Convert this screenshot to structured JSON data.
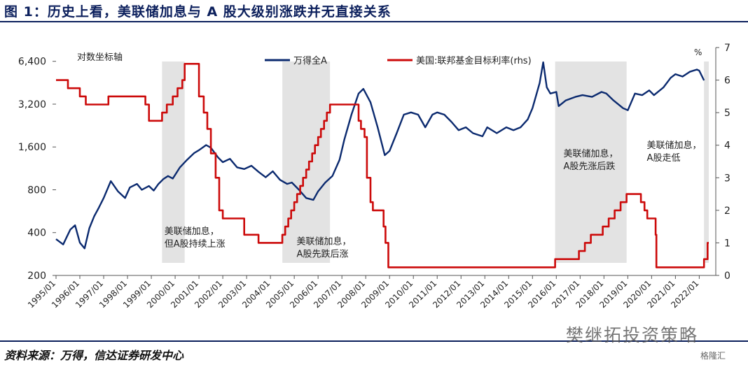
{
  "header": {
    "title": "图 1：历史上看，美联储加息与 A 股大级别涨跌并无直接关系"
  },
  "footer": {
    "source": "资料来源：万得，信达证券研发中心"
  },
  "watermark": {
    "text": "樊继拓投资策略",
    "badge": "格隆汇"
  },
  "colors": {
    "wind_a": "#0b2a6f",
    "fed_rate": "#cc0a0a",
    "shade": "#d9d9d9",
    "title": "#0b1f5c"
  },
  "chart_data": {
    "type": "line",
    "left_axis_label": "对数坐标轴",
    "right_axis_unit": "%",
    "y_left_ticks": [
      "6,400",
      "3,200",
      "1,600",
      "800",
      "400",
      "200"
    ],
    "y_left_values": [
      6400,
      3200,
      1600,
      800,
      400,
      200
    ],
    "y_left_scale": "log",
    "y_right_ticks": [
      "7",
      "6",
      "5",
      "4",
      "3",
      "2",
      "1",
      "0"
    ],
    "y_right_values": [
      7,
      6,
      5,
      4,
      3,
      2,
      1,
      0
    ],
    "x_ticks": [
      "1995/01",
      "1996/01",
      "1997/01",
      "1998/01",
      "1999/01",
      "2000/01",
      "2001/01",
      "2002/01",
      "2003/01",
      "2004/01",
      "2005/01",
      "2006/01",
      "2007/01",
      "2008/01",
      "2009/01",
      "2010/01",
      "2011/01",
      "2012/01",
      "2013/01",
      "2014/01",
      "2015/01",
      "2016/01",
      "2017/01",
      "2018/01",
      "2019/01",
      "2020/01",
      "2021/01",
      "2022/01"
    ],
    "legend": [
      {
        "name": "万得全A",
        "color": "#0b2a6f"
      },
      {
        "name": "美国:联邦基金目标利率(rhs)",
        "color": "#cc0a0a"
      }
    ],
    "series": [
      {
        "name": "万得全A",
        "axis": "left",
        "points": [
          [
            1995.0,
            360
          ],
          [
            1995.3,
            330
          ],
          [
            1995.6,
            420
          ],
          [
            1995.8,
            450
          ],
          [
            1996.0,
            340
          ],
          [
            1996.2,
            310
          ],
          [
            1996.4,
            430
          ],
          [
            1996.6,
            520
          ],
          [
            1996.8,
            600
          ],
          [
            1997.0,
            700
          ],
          [
            1997.3,
            920
          ],
          [
            1997.6,
            780
          ],
          [
            1997.9,
            700
          ],
          [
            1998.1,
            830
          ],
          [
            1998.4,
            880
          ],
          [
            1998.6,
            800
          ],
          [
            1998.9,
            850
          ],
          [
            1999.1,
            790
          ],
          [
            1999.3,
            880
          ],
          [
            1999.5,
            950
          ],
          [
            1999.7,
            1000
          ],
          [
            1999.9,
            960
          ],
          [
            2000.2,
            1150
          ],
          [
            2000.5,
            1300
          ],
          [
            2000.8,
            1450
          ],
          [
            2001.0,
            1520
          ],
          [
            2001.3,
            1650
          ],
          [
            2001.5,
            1580
          ],
          [
            2001.8,
            1350
          ],
          [
            2002.0,
            1250
          ],
          [
            2002.3,
            1320
          ],
          [
            2002.6,
            1150
          ],
          [
            2002.9,
            1120
          ],
          [
            2003.2,
            1180
          ],
          [
            2003.5,
            1070
          ],
          [
            2003.8,
            980
          ],
          [
            2004.1,
            1080
          ],
          [
            2004.4,
            940
          ],
          [
            2004.7,
            880
          ],
          [
            2004.9,
            900
          ],
          [
            2005.2,
            800
          ],
          [
            2005.5,
            700
          ],
          [
            2005.8,
            680
          ],
          [
            2006.0,
            780
          ],
          [
            2006.3,
            900
          ],
          [
            2006.6,
            1000
          ],
          [
            2006.9,
            1300
          ],
          [
            2007.1,
            1800
          ],
          [
            2007.4,
            2700
          ],
          [
            2007.7,
            3800
          ],
          [
            2007.9,
            4100
          ],
          [
            2008.2,
            3300
          ],
          [
            2008.5,
            2200
          ],
          [
            2008.8,
            1400
          ],
          [
            2009.0,
            1500
          ],
          [
            2009.3,
            2000
          ],
          [
            2009.6,
            2700
          ],
          [
            2009.9,
            2800
          ],
          [
            2010.2,
            2700
          ],
          [
            2010.5,
            2200
          ],
          [
            2010.8,
            2700
          ],
          [
            2011.0,
            2800
          ],
          [
            2011.3,
            2700
          ],
          [
            2011.6,
            2400
          ],
          [
            2011.9,
            2100
          ],
          [
            2012.2,
            2200
          ],
          [
            2012.5,
            2000
          ],
          [
            2012.9,
            1900
          ],
          [
            2013.1,
            2200
          ],
          [
            2013.5,
            2000
          ],
          [
            2013.9,
            2200
          ],
          [
            2014.2,
            2100
          ],
          [
            2014.5,
            2200
          ],
          [
            2014.8,
            2500
          ],
          [
            2015.0,
            3000
          ],
          [
            2015.3,
            4500
          ],
          [
            2015.45,
            6300
          ],
          [
            2015.6,
            4200
          ],
          [
            2015.75,
            3800
          ],
          [
            2016.0,
            3900
          ],
          [
            2016.1,
            3100
          ],
          [
            2016.4,
            3400
          ],
          [
            2016.8,
            3600
          ],
          [
            2017.1,
            3700
          ],
          [
            2017.5,
            3600
          ],
          [
            2017.9,
            3900
          ],
          [
            2018.1,
            3800
          ],
          [
            2018.4,
            3400
          ],
          [
            2018.8,
            3000
          ],
          [
            2019.0,
            2900
          ],
          [
            2019.3,
            3800
          ],
          [
            2019.6,
            3700
          ],
          [
            2019.9,
            4000
          ],
          [
            2020.1,
            3700
          ],
          [
            2020.5,
            4200
          ],
          [
            2020.8,
            4900
          ],
          [
            2021.0,
            5200
          ],
          [
            2021.3,
            5000
          ],
          [
            2021.6,
            5400
          ],
          [
            2021.9,
            5600
          ],
          [
            2022.0,
            5500
          ],
          [
            2022.2,
            4700
          ]
        ]
      },
      {
        "name": "美国:联邦基金目标利率(rhs)",
        "axis": "right",
        "points": [
          [
            1995.0,
            6.0
          ],
          [
            1995.5,
            6.0
          ],
          [
            1995.5,
            5.75
          ],
          [
            1996.0,
            5.75
          ],
          [
            1996.0,
            5.5
          ],
          [
            1996.25,
            5.5
          ],
          [
            1996.25,
            5.25
          ],
          [
            1997.2,
            5.25
          ],
          [
            1997.2,
            5.5
          ],
          [
            1998.75,
            5.5
          ],
          [
            1998.75,
            5.25
          ],
          [
            1998.9,
            5.25
          ],
          [
            1998.9,
            4.75
          ],
          [
            1999.45,
            4.75
          ],
          [
            1999.45,
            5.0
          ],
          [
            1999.65,
            5.0
          ],
          [
            1999.65,
            5.25
          ],
          [
            1999.9,
            5.25
          ],
          [
            1999.9,
            5.5
          ],
          [
            2000.1,
            5.5
          ],
          [
            2000.1,
            5.75
          ],
          [
            2000.3,
            5.75
          ],
          [
            2000.3,
            6.0
          ],
          [
            2000.4,
            6.0
          ],
          [
            2000.4,
            6.5
          ],
          [
            2001.0,
            6.5
          ],
          [
            2001.0,
            5.5
          ],
          [
            2001.2,
            5.5
          ],
          [
            2001.2,
            5.0
          ],
          [
            2001.35,
            5.0
          ],
          [
            2001.35,
            4.5
          ],
          [
            2001.5,
            4.5
          ],
          [
            2001.5,
            3.75
          ],
          [
            2001.7,
            3.75
          ],
          [
            2001.7,
            3.0
          ],
          [
            2001.85,
            3.0
          ],
          [
            2001.85,
            2.0
          ],
          [
            2002.0,
            2.0
          ],
          [
            2002.0,
            1.75
          ],
          [
            2002.9,
            1.75
          ],
          [
            2002.9,
            1.25
          ],
          [
            2003.5,
            1.25
          ],
          [
            2003.5,
            1.0
          ],
          [
            2004.5,
            1.0
          ],
          [
            2004.5,
            1.25
          ],
          [
            2004.62,
            1.25
          ],
          [
            2004.62,
            1.5
          ],
          [
            2004.75,
            1.5
          ],
          [
            2004.75,
            1.75
          ],
          [
            2004.87,
            1.75
          ],
          [
            2004.87,
            2.0
          ],
          [
            2005.0,
            2.0
          ],
          [
            2005.0,
            2.25
          ],
          [
            2005.12,
            2.25
          ],
          [
            2005.12,
            2.5
          ],
          [
            2005.25,
            2.5
          ],
          [
            2005.25,
            2.75
          ],
          [
            2005.37,
            2.75
          ],
          [
            2005.37,
            3.0
          ],
          [
            2005.5,
            3.0
          ],
          [
            2005.5,
            3.25
          ],
          [
            2005.62,
            3.25
          ],
          [
            2005.62,
            3.5
          ],
          [
            2005.75,
            3.5
          ],
          [
            2005.75,
            3.75
          ],
          [
            2005.87,
            3.75
          ],
          [
            2005.87,
            4.0
          ],
          [
            2006.0,
            4.0
          ],
          [
            2006.0,
            4.25
          ],
          [
            2006.12,
            4.25
          ],
          [
            2006.12,
            4.5
          ],
          [
            2006.25,
            4.5
          ],
          [
            2006.25,
            4.75
          ],
          [
            2006.37,
            4.75
          ],
          [
            2006.37,
            5.0
          ],
          [
            2006.5,
            5.0
          ],
          [
            2006.5,
            5.25
          ],
          [
            2007.7,
            5.25
          ],
          [
            2007.7,
            4.75
          ],
          [
            2007.8,
            4.75
          ],
          [
            2007.8,
            4.5
          ],
          [
            2007.95,
            4.5
          ],
          [
            2007.95,
            4.25
          ],
          [
            2008.05,
            4.25
          ],
          [
            2008.05,
            3.0
          ],
          [
            2008.2,
            3.0
          ],
          [
            2008.2,
            2.25
          ],
          [
            2008.3,
            2.25
          ],
          [
            2008.3,
            2.0
          ],
          [
            2008.75,
            2.0
          ],
          [
            2008.75,
            1.5
          ],
          [
            2008.83,
            1.5
          ],
          [
            2008.83,
            1.0
          ],
          [
            2008.95,
            1.0
          ],
          [
            2008.95,
            0.25
          ],
          [
            2015.95,
            0.25
          ],
          [
            2015.95,
            0.5
          ],
          [
            2016.95,
            0.5
          ],
          [
            2016.95,
            0.75
          ],
          [
            2017.2,
            0.75
          ],
          [
            2017.2,
            1.0
          ],
          [
            2017.45,
            1.0
          ],
          [
            2017.45,
            1.25
          ],
          [
            2017.95,
            1.25
          ],
          [
            2017.95,
            1.5
          ],
          [
            2018.2,
            1.5
          ],
          [
            2018.2,
            1.75
          ],
          [
            2018.45,
            1.75
          ],
          [
            2018.45,
            2.0
          ],
          [
            2018.7,
            2.0
          ],
          [
            2018.7,
            2.25
          ],
          [
            2018.95,
            2.25
          ],
          [
            2018.95,
            2.5
          ],
          [
            2019.55,
            2.5
          ],
          [
            2019.55,
            2.25
          ],
          [
            2019.7,
            2.25
          ],
          [
            2019.7,
            2.0
          ],
          [
            2019.82,
            2.0
          ],
          [
            2019.82,
            1.75
          ],
          [
            2020.17,
            1.75
          ],
          [
            2020.17,
            1.25
          ],
          [
            2020.2,
            1.25
          ],
          [
            2020.2,
            0.25
          ],
          [
            2022.2,
            0.25
          ],
          [
            2022.2,
            0.5
          ],
          [
            2022.35,
            0.5
          ],
          [
            2022.35,
            1.0
          ],
          [
            2022.4,
            1.0
          ]
        ]
      }
    ],
    "shaded_periods": [
      {
        "start": 1999.45,
        "end": 2000.4
      },
      {
        "start": 2004.5,
        "end": 2006.5
      },
      {
        "start": 2015.95,
        "end": 2018.95
      },
      {
        "start": 2022.2,
        "end": 2022.4
      }
    ],
    "annotations": [
      {
        "lines": [
          "美联储加息，",
          "但A股持续上涨"
        ],
        "x": 1999.55,
        "y": 390
      },
      {
        "lines": [
          "美联储加息，",
          "A股先跌后涨"
        ],
        "x": 2005.1,
        "y": 330
      },
      {
        "lines": [
          "美联储加息，",
          "A股先涨后跌"
        ],
        "x": 2016.3,
        "y": 1370
      },
      {
        "lines": [
          "美联储加息，",
          "A股走低"
        ],
        "x": 2019.8,
        "y": 1570
      }
    ],
    "xlim": [
      1995.0,
      2022.4
    ],
    "ylim_left": [
      200,
      8000
    ],
    "ylim_right": [
      0,
      7
    ],
    "grid": false,
    "legend_position": "top"
  }
}
